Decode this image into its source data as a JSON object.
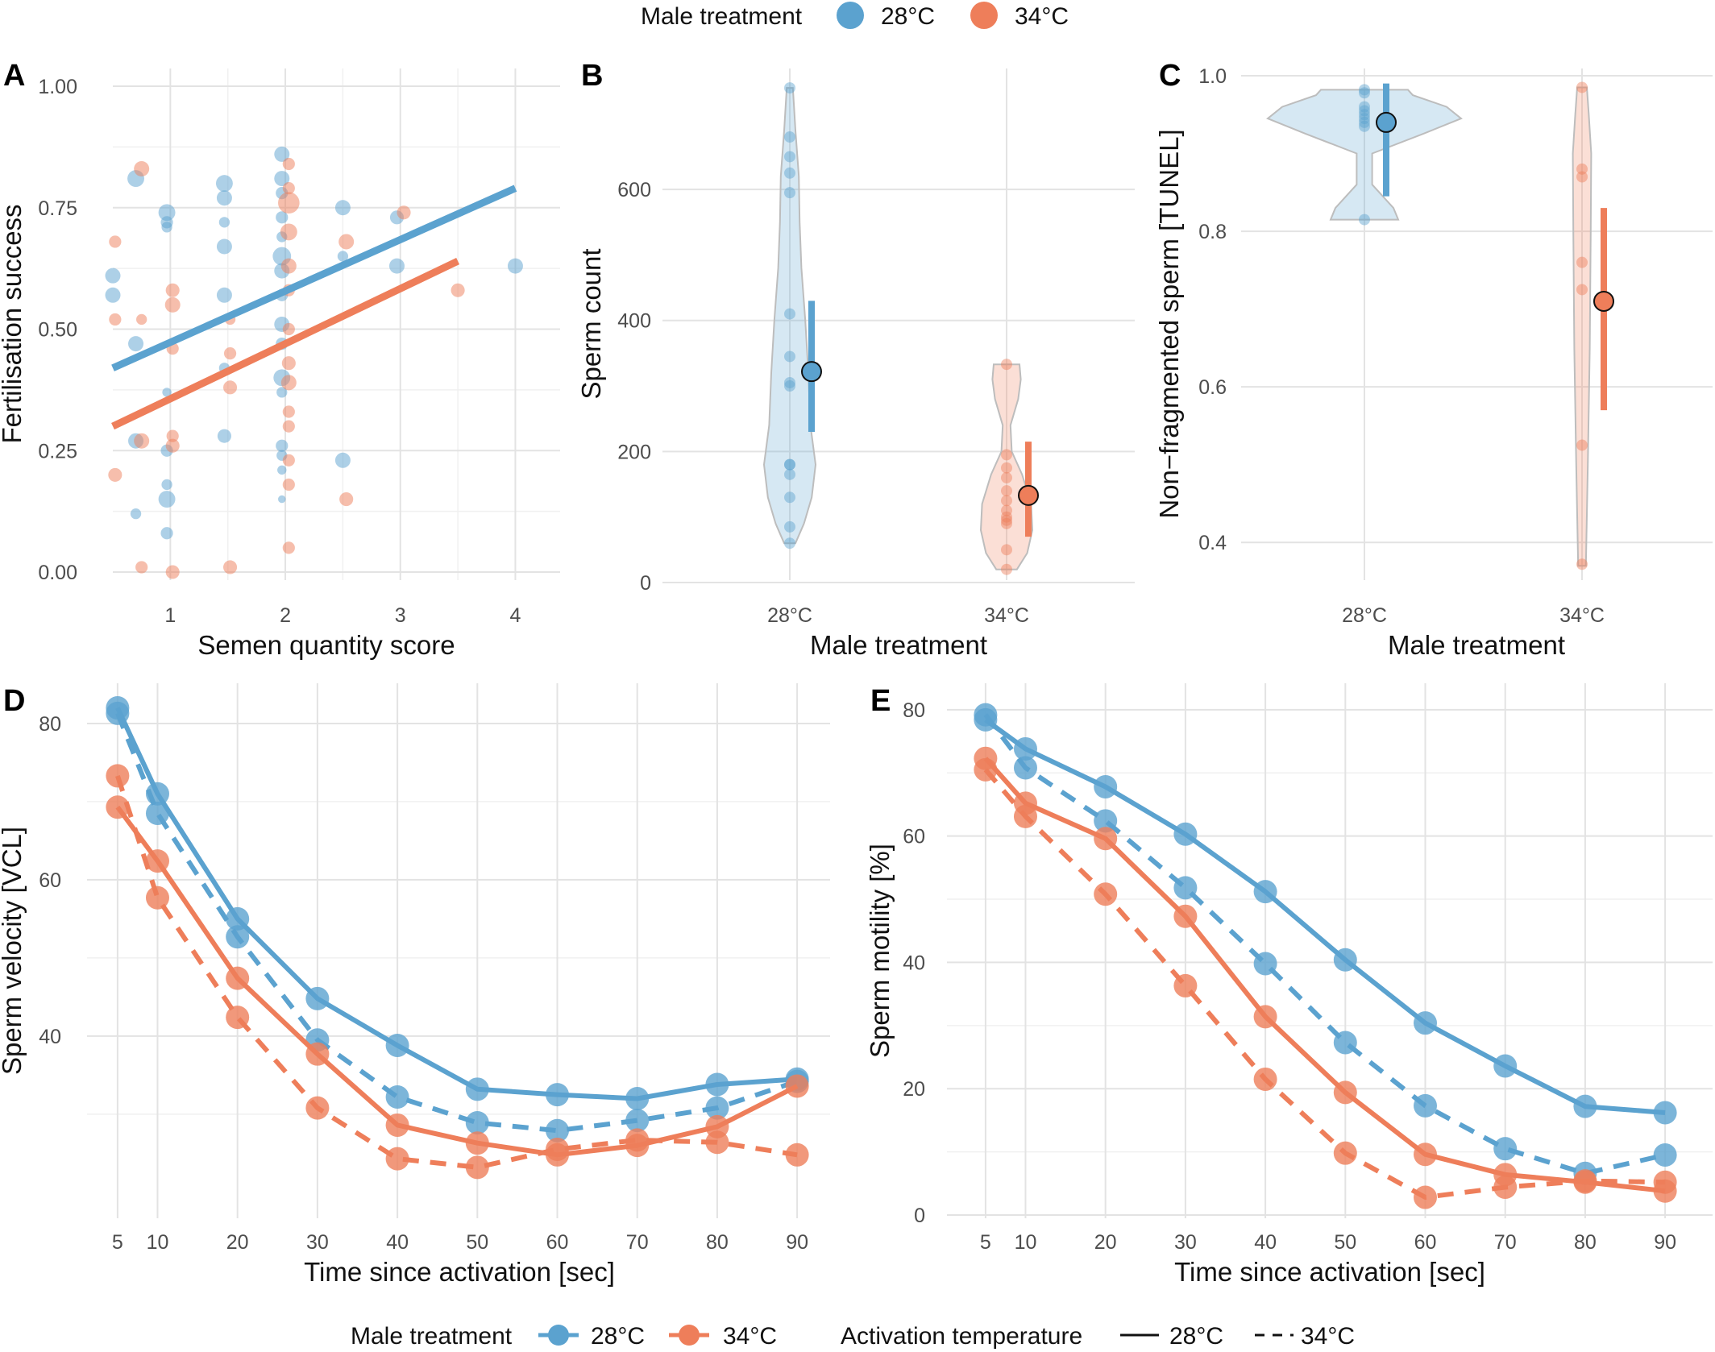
{
  "colors": {
    "c28": "#5BA2CF",
    "c34": "#EE7E5A",
    "grid": "#E3E3E3"
  },
  "legend_top": {
    "title": "Male treatment",
    "items": [
      "28°C",
      "34°C"
    ]
  },
  "legend_bottom": {
    "male_title": "Male treatment",
    "male_items": [
      "28°C",
      "34°C"
    ],
    "act_title": "Activation temperature",
    "act_items": [
      "28°C",
      "34°C"
    ]
  },
  "chart_data": [
    {
      "panel": "A",
      "type": "scatter",
      "xlabel": "Semen quantity score",
      "ylabel": "Fertilisation success",
      "xlim": [
        0.5,
        4.2
      ],
      "ylim": [
        0,
        1
      ],
      "xticks": [
        1,
        2,
        3,
        4
      ],
      "yticks": [
        "0.00",
        "0.25",
        "0.50",
        "0.75",
        "1.00"
      ],
      "points": [
        {
          "t": "28",
          "x": 0.5,
          "y": 0.61,
          "s": 1
        },
        {
          "t": "28",
          "x": 0.5,
          "y": 0.57,
          "s": 1
        },
        {
          "t": "28",
          "x": 0.7,
          "y": 0.81,
          "s": 1.1
        },
        {
          "t": "28",
          "x": 0.7,
          "y": 0.47,
          "s": 1
        },
        {
          "t": "28",
          "x": 0.7,
          "y": 0.27,
          "s": 1
        },
        {
          "t": "28",
          "x": 0.7,
          "y": 0.12,
          "s": 0.7
        },
        {
          "t": "28",
          "x": 0.97,
          "y": 0.74,
          "s": 1.1
        },
        {
          "t": "28",
          "x": 0.97,
          "y": 0.72,
          "s": 0.8
        },
        {
          "t": "28",
          "x": 0.97,
          "y": 0.71,
          "s": 0.7
        },
        {
          "t": "28",
          "x": 0.97,
          "y": 0.37,
          "s": 0.6
        },
        {
          "t": "28",
          "x": 0.97,
          "y": 0.25,
          "s": 0.8
        },
        {
          "t": "28",
          "x": 0.97,
          "y": 0.18,
          "s": 0.7
        },
        {
          "t": "28",
          "x": 0.97,
          "y": 0.15,
          "s": 1.1
        },
        {
          "t": "28",
          "x": 0.97,
          "y": 0.08,
          "s": 0.8
        },
        {
          "t": "28",
          "x": 1.47,
          "y": 0.8,
          "s": 1.1
        },
        {
          "t": "28",
          "x": 1.47,
          "y": 0.77,
          "s": 1
        },
        {
          "t": "28",
          "x": 1.47,
          "y": 0.72,
          "s": 0.7
        },
        {
          "t": "28",
          "x": 1.47,
          "y": 0.67,
          "s": 1
        },
        {
          "t": "28",
          "x": 1.47,
          "y": 0.57,
          "s": 1
        },
        {
          "t": "28",
          "x": 1.47,
          "y": 0.42,
          "s": 0.7
        },
        {
          "t": "28",
          "x": 1.47,
          "y": 0.28,
          "s": 0.9
        },
        {
          "t": "28",
          "x": 1.97,
          "y": 0.86,
          "s": 1
        },
        {
          "t": "28",
          "x": 1.97,
          "y": 0.81,
          "s": 1
        },
        {
          "t": "28",
          "x": 1.97,
          "y": 0.78,
          "s": 0.8
        },
        {
          "t": "28",
          "x": 1.97,
          "y": 0.73,
          "s": 0.8
        },
        {
          "t": "28",
          "x": 1.97,
          "y": 0.69,
          "s": 0.7
        },
        {
          "t": "28",
          "x": 1.97,
          "y": 0.65,
          "s": 1.2
        },
        {
          "t": "28",
          "x": 1.97,
          "y": 0.62,
          "s": 1
        },
        {
          "t": "28",
          "x": 1.97,
          "y": 0.57,
          "s": 0.8
        },
        {
          "t": "28",
          "x": 1.97,
          "y": 0.51,
          "s": 1
        },
        {
          "t": "28",
          "x": 1.97,
          "y": 0.47,
          "s": 0.8
        },
        {
          "t": "28",
          "x": 1.97,
          "y": 0.4,
          "s": 1.1
        },
        {
          "t": "28",
          "x": 1.97,
          "y": 0.37,
          "s": 0.7
        },
        {
          "t": "28",
          "x": 1.97,
          "y": 0.26,
          "s": 0.8
        },
        {
          "t": "28",
          "x": 1.97,
          "y": 0.24,
          "s": 0.7
        },
        {
          "t": "28",
          "x": 1.97,
          "y": 0.21,
          "s": 0.6
        },
        {
          "t": "28",
          "x": 1.97,
          "y": 0.15,
          "s": 0.5
        },
        {
          "t": "28",
          "x": 2.5,
          "y": 0.75,
          "s": 1
        },
        {
          "t": "28",
          "x": 2.5,
          "y": 0.65,
          "s": 0.7
        },
        {
          "t": "28",
          "x": 2.5,
          "y": 0.23,
          "s": 1
        },
        {
          "t": "28",
          "x": 2.97,
          "y": 0.73,
          "s": 0.9
        },
        {
          "t": "28",
          "x": 2.97,
          "y": 0.63,
          "s": 1
        },
        {
          "t": "28",
          "x": 4.0,
          "y": 0.63,
          "s": 1
        },
        {
          "t": "34",
          "x": 0.52,
          "y": 0.68,
          "s": 0.8
        },
        {
          "t": "34",
          "x": 0.52,
          "y": 0.52,
          "s": 0.8
        },
        {
          "t": "34",
          "x": 0.52,
          "y": 0.2,
          "s": 0.9
        },
        {
          "t": "34",
          "x": 0.75,
          "y": 0.83,
          "s": 1
        },
        {
          "t": "34",
          "x": 0.75,
          "y": 0.52,
          "s": 0.7
        },
        {
          "t": "34",
          "x": 0.75,
          "y": 0.27,
          "s": 1
        },
        {
          "t": "34",
          "x": 0.75,
          "y": 0.01,
          "s": 0.8
        },
        {
          "t": "34",
          "x": 1.02,
          "y": 0.58,
          "s": 0.9
        },
        {
          "t": "34",
          "x": 1.02,
          "y": 0.55,
          "s": 1
        },
        {
          "t": "34",
          "x": 1.02,
          "y": 0.46,
          "s": 0.8
        },
        {
          "t": "34",
          "x": 1.02,
          "y": 0.28,
          "s": 0.8
        },
        {
          "t": "34",
          "x": 1.02,
          "y": 0.26,
          "s": 0.9
        },
        {
          "t": "34",
          "x": 1.02,
          "y": 0.0,
          "s": 0.9
        },
        {
          "t": "34",
          "x": 1.52,
          "y": 0.52,
          "s": 0.7
        },
        {
          "t": "34",
          "x": 1.52,
          "y": 0.45,
          "s": 0.8
        },
        {
          "t": "34",
          "x": 1.52,
          "y": 0.38,
          "s": 0.9
        },
        {
          "t": "34",
          "x": 1.52,
          "y": 0.01,
          "s": 0.9
        },
        {
          "t": "34",
          "x": 2.03,
          "y": 0.84,
          "s": 0.8
        },
        {
          "t": "34",
          "x": 2.03,
          "y": 0.79,
          "s": 0.8
        },
        {
          "t": "34",
          "x": 2.03,
          "y": 0.76,
          "s": 1.4
        },
        {
          "t": "34",
          "x": 2.03,
          "y": 0.7,
          "s": 1.1
        },
        {
          "t": "34",
          "x": 2.03,
          "y": 0.63,
          "s": 1
        },
        {
          "t": "34",
          "x": 2.03,
          "y": 0.58,
          "s": 0.8
        },
        {
          "t": "34",
          "x": 2.03,
          "y": 0.5,
          "s": 0.8
        },
        {
          "t": "34",
          "x": 2.03,
          "y": 0.43,
          "s": 0.9
        },
        {
          "t": "34",
          "x": 2.03,
          "y": 0.39,
          "s": 1
        },
        {
          "t": "34",
          "x": 2.03,
          "y": 0.33,
          "s": 0.8
        },
        {
          "t": "34",
          "x": 2.03,
          "y": 0.3,
          "s": 0.8
        },
        {
          "t": "34",
          "x": 2.03,
          "y": 0.23,
          "s": 0.8
        },
        {
          "t": "34",
          "x": 2.03,
          "y": 0.18,
          "s": 0.8
        },
        {
          "t": "34",
          "x": 2.03,
          "y": 0.05,
          "s": 0.8
        },
        {
          "t": "34",
          "x": 2.53,
          "y": 0.68,
          "s": 1
        },
        {
          "t": "34",
          "x": 2.53,
          "y": 0.15,
          "s": 0.9
        },
        {
          "t": "34",
          "x": 3.03,
          "y": 0.74,
          "s": 0.9
        },
        {
          "t": "34",
          "x": 3.5,
          "y": 0.58,
          "s": 0.9
        }
      ],
      "lines": [
        {
          "t": "28",
          "x": [
            0.5,
            4.0
          ],
          "y": [
            0.42,
            0.79
          ]
        },
        {
          "t": "34",
          "x": [
            0.5,
            3.5
          ],
          "y": [
            0.3,
            0.64
          ]
        }
      ]
    },
    {
      "panel": "B",
      "type": "violin",
      "xlabel": "Male treatment",
      "ylabel": "Sperm count",
      "categories": [
        "28°C",
        "34°C"
      ],
      "ylim": [
        0,
        760
      ],
      "yticks": [
        0,
        200,
        400,
        600
      ],
      "groups": [
        {
          "t": "28",
          "mean": 322,
          "ci": [
            230,
            430
          ],
          "points": [
            755,
            680,
            650,
            625,
            595,
            410,
            345,
            305,
            300,
            180,
            180,
            165,
            130,
            85,
            60
          ],
          "violin": [
            [
              60,
              0.22
            ],
            [
              90,
              0.55
            ],
            [
              130,
              0.85
            ],
            [
              180,
              1.0
            ],
            [
              240,
              0.8
            ],
            [
              320,
              0.72
            ],
            [
              400,
              0.6
            ],
            [
              480,
              0.45
            ],
            [
              550,
              0.38
            ],
            [
              620,
              0.35
            ],
            [
              690,
              0.22
            ],
            [
              755,
              0.12
            ]
          ]
        },
        {
          "t": "34",
          "mean": 133,
          "ci": [
            70,
            215
          ],
          "points": [
            333,
            195,
            175,
            160,
            140,
            125,
            110,
            100,
            95,
            90,
            50,
            20
          ],
          "violin": [
            [
              20,
              0.4
            ],
            [
              45,
              0.8
            ],
            [
              80,
              1.0
            ],
            [
              120,
              0.95
            ],
            [
              165,
              0.6
            ],
            [
              200,
              0.2
            ],
            [
              240,
              0.15
            ],
            [
              280,
              0.45
            ],
            [
              310,
              0.55
            ],
            [
              333,
              0.5
            ]
          ]
        }
      ]
    },
    {
      "panel": "C",
      "type": "violin",
      "xlabel": "Male treatment",
      "ylabel": "Non−fragmented sperm [TUNEL]",
      "categories": [
        "28°C",
        "34°C"
      ],
      "ylim": [
        0.365,
        1.0
      ],
      "yticks": [
        "0.4",
        "0.6",
        "0.8",
        "1.0"
      ],
      "groups": [
        {
          "t": "28",
          "mean": 0.94,
          "ci": [
            0.845,
            0.99
          ],
          "points": [
            0.982,
            0.978,
            0.96,
            0.955,
            0.95,
            0.945,
            0.94,
            0.935,
            0.815
          ],
          "violin": [
            [
              0.815,
              0.35
            ],
            [
              0.83,
              0.3
            ],
            [
              0.86,
              0.08
            ],
            [
              0.9,
              0.08
            ],
            [
              0.925,
              0.6
            ],
            [
              0.945,
              1.0
            ],
            [
              0.96,
              0.85
            ],
            [
              0.975,
              0.5
            ],
            [
              0.982,
              0.45
            ]
          ]
        },
        {
          "t": "34",
          "mean": 0.71,
          "ci": [
            0.57,
            0.83
          ],
          "points": [
            0.985,
            0.88,
            0.87,
            0.76,
            0.725,
            0.525,
            0.372
          ],
          "violin": [
            [
              0.37,
              0.04
            ],
            [
              0.5,
              0.06
            ],
            [
              0.65,
              0.08
            ],
            [
              0.8,
              0.09
            ],
            [
              0.9,
              0.095
            ],
            [
              0.95,
              0.07
            ],
            [
              0.985,
              0.05
            ]
          ]
        }
      ]
    },
    {
      "panel": "D",
      "type": "line",
      "xlabel": "Time since activation [sec]",
      "ylabel": "Sperm velocity [VCL]",
      "x": [
        5,
        10,
        20,
        30,
        40,
        50,
        60,
        70,
        80,
        90
      ],
      "xlim": [
        3.5,
        91.5
      ],
      "ylim": [
        20.5,
        83.5
      ],
      "yticks": [
        40,
        60,
        80
      ],
      "series": [
        {
          "name": "28°C",
          "male": "28",
          "act": "28",
          "values": [
            82,
            71,
            55,
            44.8,
            38.8,
            33.2,
            32.5,
            32.0,
            33.8,
            34.5
          ]
        },
        {
          "name": "28°C",
          "male": "28",
          "act": "34",
          "values": [
            81.3,
            68.5,
            52.7,
            39.5,
            32.2,
            28.9,
            27.9,
            29.2,
            30.8,
            34.2
          ]
        },
        {
          "name": "34°C",
          "male": "34",
          "act": "28",
          "values": [
            69.3,
            62.4,
            47.4,
            37.7,
            28.6,
            26.3,
            24.8,
            26.0,
            28.4,
            33.6
          ]
        },
        {
          "name": "34°C",
          "male": "34",
          "act": "34",
          "values": [
            73.3,
            57.7,
            42.4,
            30.8,
            24.3,
            23.2,
            25.5,
            26.7,
            26.4,
            24.8
          ]
        }
      ]
    },
    {
      "panel": "E",
      "type": "line",
      "xlabel": "Time since activation [sec]",
      "ylabel": "Sperm motility [%]",
      "x": [
        5,
        10,
        20,
        30,
        40,
        50,
        60,
        70,
        80,
        90
      ],
      "xlim": [
        3.5,
        91.5
      ],
      "ylim": [
        0,
        81
      ],
      "yticks": [
        0,
        20,
        40,
        60,
        80
      ],
      "series": [
        {
          "name": "28°C",
          "male": "28",
          "act": "28",
          "values": [
            78.4,
            73.8,
            67.8,
            60.3,
            51.2,
            40.4,
            30.4,
            23.6,
            17.2,
            16.2
          ]
        },
        {
          "name": "28°C",
          "male": "28",
          "act": "34",
          "values": [
            79.2,
            70.8,
            62.4,
            51.8,
            39.8,
            27.3,
            17.3,
            10.5,
            6.6,
            9.5
          ]
        },
        {
          "name": "34°C",
          "male": "34",
          "act": "28",
          "values": [
            72.3,
            65.2,
            59.6,
            47.3,
            31.4,
            19.4,
            9.6,
            6.4,
            5.2,
            3.8
          ]
        },
        {
          "name": "34°C",
          "male": "34",
          "act": "34",
          "values": [
            70.5,
            63.1,
            50.8,
            36.3,
            21.5,
            9.8,
            2.8,
            4.4,
            5.4,
            5.2
          ]
        }
      ]
    }
  ]
}
